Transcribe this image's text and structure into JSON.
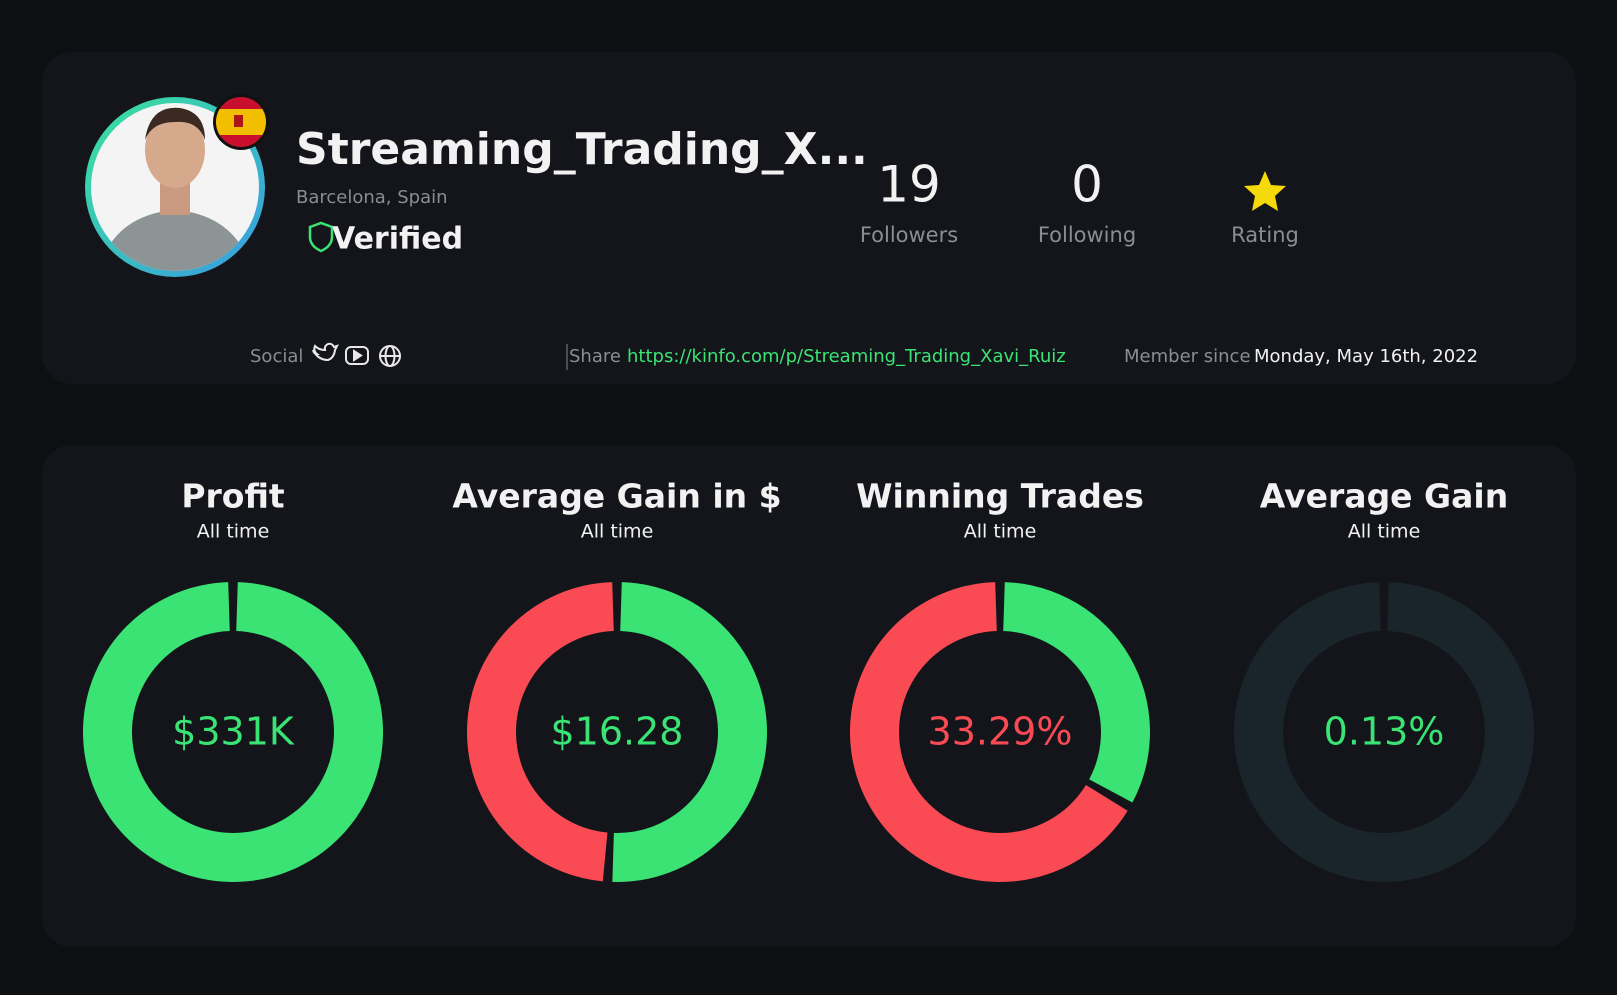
{
  "profile": {
    "name": "Streaming_Trading_X...",
    "location": "Barcelona, Spain",
    "verified": "Verified",
    "stats": [
      {
        "value": "19",
        "label": "Followers"
      },
      {
        "value": "0",
        "label": "Following"
      },
      {
        "label": "Rating"
      }
    ]
  },
  "links": {
    "social": "Social",
    "share_label": "Share",
    "share_url": "https://kinfo.com/p/Streaming_Trading_Xavi_Ruiz",
    "member_label": "Member since",
    "member_date": "Monday, May 16th, 2022"
  },
  "cards": [
    {
      "title": "Profit",
      "period": "All time",
      "value_label": "$331K",
      "value_color": "#3ae374",
      "segments": [
        {
          "color": "#3ae374",
          "value": 100
        }
      ]
    },
    {
      "title": "Average Gain in $",
      "period": "All time",
      "value_label": "$16.28",
      "value_color": "#3ae374",
      "segments": [
        {
          "color": "#3ae374",
          "value": 51
        },
        {
          "color": "#fa4b55",
          "value": 49
        }
      ]
    },
    {
      "title": "Winning Trades",
      "period": "All time",
      "value_label": "33.29%",
      "value_color": "#fa4b55",
      "segments": [
        {
          "color": "#3ae374",
          "value": 33.29
        },
        {
          "color": "#fa4b55",
          "value": 66.71
        }
      ]
    },
    {
      "title": "Average Gain",
      "period": "All time",
      "value_label": "0.13%",
      "value_color": "#3ae374",
      "segments": [
        {
          "color": "#1a242b",
          "value": 100
        }
      ]
    }
  ]
}
